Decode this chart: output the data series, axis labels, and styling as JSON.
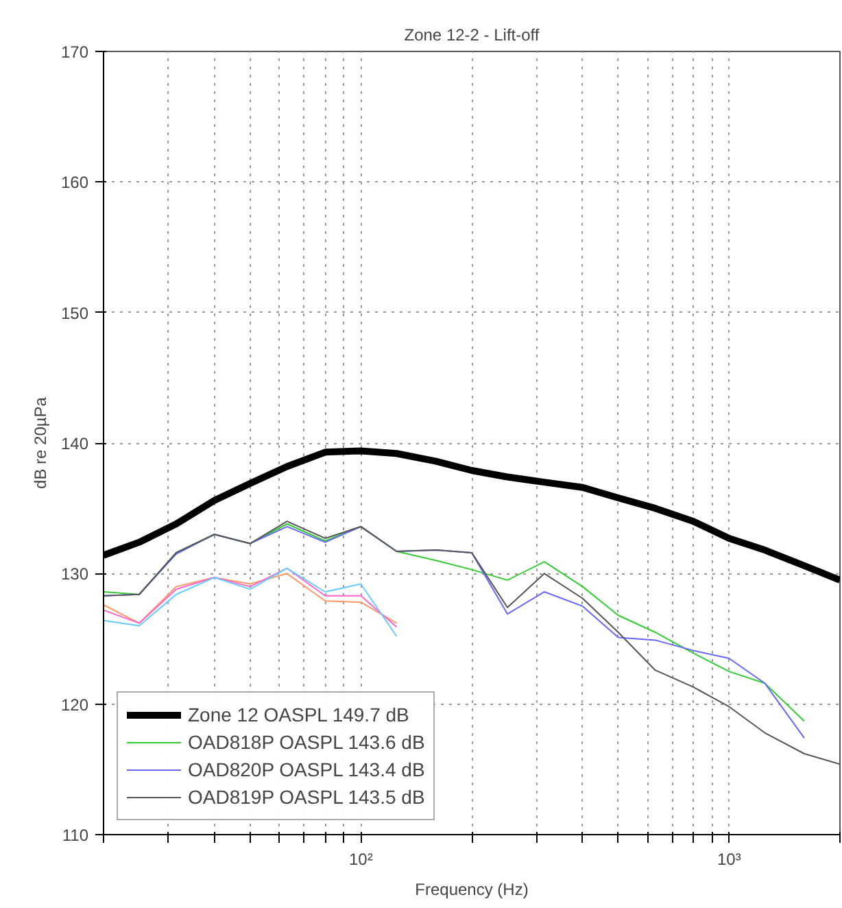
{
  "chart_data": {
    "type": "line",
    "title": "Zone 12-2 - Lift-off",
    "xlabel": "Frequency (Hz)",
    "ylabel": "dB re 20µPa",
    "log": "x",
    "grid": true,
    "legend": "bottom left",
    "marker": "none",
    "line_style": "solid",
    "xlim": [
      20,
      2000
    ],
    "ylim": [
      110,
      170
    ],
    "xticks": [
      {
        "value": 20,
        "label": null
      },
      {
        "value": 30,
        "label": null
      },
      {
        "value": 40,
        "label": null
      },
      {
        "value": 50,
        "label": null
      },
      {
        "value": 60,
        "label": null
      },
      {
        "value": 70,
        "label": null
      },
      {
        "value": 80,
        "label": null
      },
      {
        "value": 90,
        "label": null
      },
      {
        "value": 100,
        "label": "10²"
      },
      {
        "value": 200,
        "label": null
      },
      {
        "value": 300,
        "label": null
      },
      {
        "value": 400,
        "label": null
      },
      {
        "value": 500,
        "label": null
      },
      {
        "value": 600,
        "label": null
      },
      {
        "value": 700,
        "label": null
      },
      {
        "value": 800,
        "label": null
      },
      {
        "value": 900,
        "label": null
      },
      {
        "value": 1000,
        "label": "10³"
      },
      {
        "value": 2000,
        "label": null
      }
    ],
    "yticks": [
      110,
      120,
      130,
      140,
      150,
      160,
      170
    ],
    "series": [
      {
        "color": "#ff9966",
        "x": [
          20,
          25,
          31.5,
          40,
          50,
          63,
          80,
          100,
          125
        ],
        "values": [
          127.6,
          126.2,
          129.0,
          129.7,
          129.2,
          130.0,
          127.9,
          127.8,
          126.2
        ]
      },
      {
        "color": "#ff66cc",
        "x": [
          20,
          25,
          31.5,
          40,
          50,
          63,
          80,
          100,
          125
        ],
        "values": [
          127.2,
          126.2,
          128.8,
          129.7,
          129.0,
          130.4,
          128.3,
          128.3,
          125.9
        ]
      },
      {
        "color": "#66ccff",
        "x": [
          20,
          25,
          31.5,
          40,
          50,
          63,
          80,
          100,
          125
        ],
        "values": [
          126.4,
          126.0,
          128.4,
          129.7,
          128.8,
          130.4,
          128.6,
          129.2,
          125.2
        ]
      },
      {
        "name": "Zone 12 OASPL 149.7 dB",
        "color": "#000000",
        "x": [
          20,
          25,
          31.5,
          40,
          50,
          63,
          80,
          100,
          125,
          160,
          200,
          250,
          315,
          400,
          500,
          630,
          800,
          1000,
          1250,
          1600,
          2000
        ],
        "values": [
          131.4,
          132.4,
          133.8,
          135.6,
          136.9,
          138.2,
          139.3,
          139.4,
          139.2,
          138.6,
          137.9,
          137.4,
          137.0,
          136.6,
          135.8,
          135.0,
          134.0,
          132.7,
          131.8,
          130.6,
          129.5
        ]
      },
      {
        "name": "OAD818P OASPL 143.6 dB",
        "color": "#33cc33",
        "x": [
          20,
          25,
          31.5,
          40,
          50,
          63,
          80,
          100,
          125,
          160,
          200,
          250,
          315,
          400,
          500,
          630,
          800,
          1000,
          1250,
          1600
        ],
        "values": [
          128.6,
          128.4,
          131.6,
          133.0,
          132.3,
          133.8,
          132.5,
          133.6,
          131.7,
          131.0,
          130.3,
          129.5,
          130.9,
          129.0,
          126.8,
          125.5,
          123.9,
          122.5,
          121.6,
          118.7
        ]
      },
      {
        "name": "OAD820P OASPL 143.4 dB",
        "color": "#6666ff",
        "x": [
          20,
          25,
          31.5,
          40,
          50,
          63,
          80,
          100,
          125,
          160,
          200,
          250,
          315,
          400,
          500,
          630,
          800,
          1000,
          1250,
          1600
        ],
        "values": [
          128.3,
          128.4,
          131.5,
          133.0,
          132.3,
          133.6,
          132.4,
          133.6,
          131.7,
          131.8,
          131.6,
          126.9,
          128.6,
          127.5,
          125.1,
          124.9,
          124.1,
          123.5,
          121.6,
          117.4
        ]
      },
      {
        "name": "OAD819P OASPL 143.5 dB",
        "color": "#555555",
        "x": [
          20,
          25,
          31.5,
          40,
          50,
          63,
          80,
          100,
          125,
          160,
          200,
          250,
          315,
          400,
          500,
          630,
          800,
          1000,
          1250,
          1600,
          2000
        ],
        "values": [
          128.3,
          128.4,
          131.6,
          133.0,
          132.3,
          134.0,
          132.7,
          133.6,
          131.7,
          131.8,
          131.6,
          127.4,
          130.0,
          128.1,
          125.5,
          122.6,
          121.3,
          119.8,
          117.8,
          116.2,
          115.4
        ]
      }
    ]
  }
}
